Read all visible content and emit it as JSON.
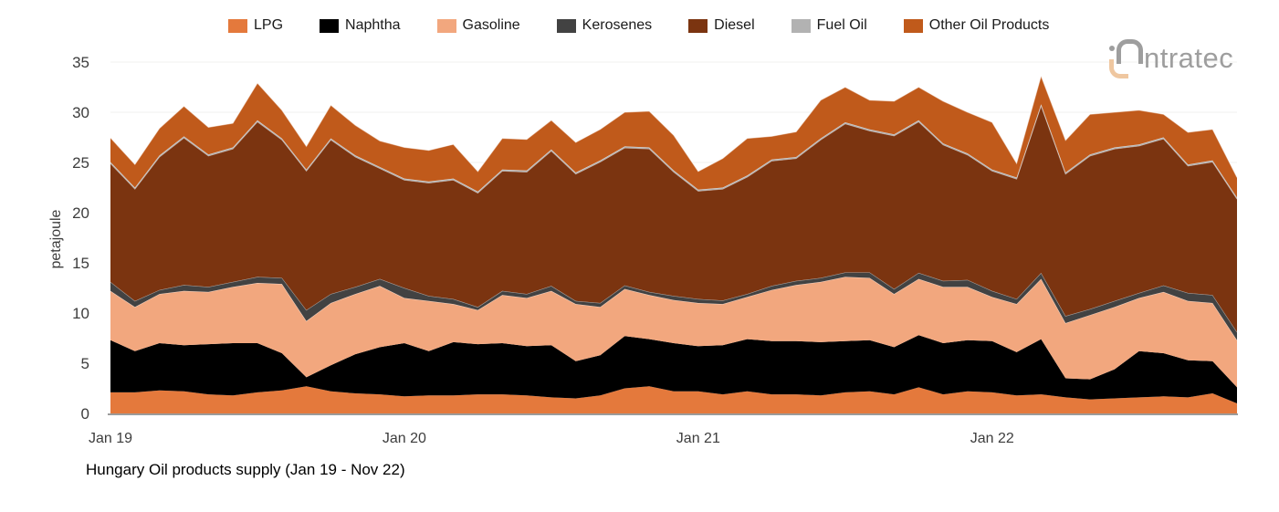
{
  "logo": {
    "text": "ntratec",
    "full_name": "intratec",
    "gray": "#9e9e9e",
    "peach": "#efc7a0"
  },
  "chart_data": {
    "type": "area",
    "stacked": true,
    "title": "Hungary Oil products supply (Jan 19 - Nov 22)",
    "xlabel": "",
    "ylabel": "petajoule",
    "ylim": [
      0,
      35
    ],
    "yticks": [
      0,
      5,
      10,
      15,
      20,
      25,
      30,
      35
    ],
    "grid": true,
    "grid_color": "#f2f1ef",
    "axis_color": "#9b9b9b",
    "tick_label_color": "#3d3d3d",
    "legend_position": "top",
    "xtick_labels": [
      "Jan 19",
      "Jan 20",
      "Jan 21",
      "Jan 22"
    ],
    "xtick_indices": [
      0,
      12,
      24,
      36
    ],
    "categories": [
      "Jan 19",
      "Feb 19",
      "Mar 19",
      "Apr 19",
      "May 19",
      "Jun 19",
      "Jul 19",
      "Aug 19",
      "Sep 19",
      "Oct 19",
      "Nov 19",
      "Dec 19",
      "Jan 20",
      "Feb 20",
      "Mar 20",
      "Apr 20",
      "May 20",
      "Jun 20",
      "Jul 20",
      "Aug 20",
      "Sep 20",
      "Oct 20",
      "Nov 20",
      "Dec 20",
      "Jan 21",
      "Feb 21",
      "Mar 21",
      "Apr 21",
      "May 21",
      "Jun 21",
      "Jul 21",
      "Aug 21",
      "Sep 21",
      "Oct 21",
      "Nov 21",
      "Dec 21",
      "Jan 22",
      "Feb 22",
      "Mar 22",
      "Apr 22",
      "May 22",
      "Jun 22",
      "Jul 22",
      "Aug 22",
      "Sep 22",
      "Oct 22",
      "Nov 22"
    ],
    "series": [
      {
        "name": "LPG",
        "color": "#e4793c",
        "values": [
          2.1,
          2.1,
          2.3,
          2.2,
          1.9,
          1.8,
          2.1,
          2.3,
          2.7,
          2.2,
          2.0,
          1.9,
          1.7,
          1.8,
          1.8,
          1.9,
          1.9,
          1.8,
          1.6,
          1.5,
          1.8,
          2.5,
          2.7,
          2.2,
          2.2,
          1.9,
          2.2,
          1.9,
          1.9,
          1.8,
          2.1,
          2.2,
          1.9,
          2.6,
          1.9,
          2.2,
          2.1,
          1.8,
          1.9,
          1.6,
          1.4,
          1.5,
          1.6,
          1.7,
          1.6,
          2.0,
          1.0
        ]
      },
      {
        "name": "Naphtha",
        "color": "#000000",
        "values": [
          5.2,
          4.1,
          4.7,
          4.6,
          5.0,
          5.2,
          4.9,
          3.7,
          0.9,
          2.6,
          3.9,
          4.7,
          5.3,
          4.4,
          5.3,
          5.0,
          5.1,
          4.9,
          5.2,
          3.7,
          4.0,
          5.2,
          4.7,
          4.8,
          4.5,
          4.9,
          5.2,
          5.3,
          5.3,
          5.3,
          5.1,
          5.1,
          4.7,
          5.2,
          5.1,
          5.1,
          5.1,
          4.3,
          5.5,
          1.9,
          2.0,
          2.9,
          4.6,
          4.3,
          3.7,
          3.2,
          1.6
        ]
      },
      {
        "name": "Gasoline",
        "color": "#f2a77e",
        "values": [
          4.9,
          4.4,
          4.9,
          5.4,
          5.2,
          5.6,
          6.0,
          6.9,
          5.6,
          6.2,
          6.0,
          6.1,
          4.5,
          5.0,
          3.8,
          3.4,
          4.8,
          4.8,
          5.4,
          5.7,
          4.8,
          4.7,
          4.4,
          4.3,
          4.3,
          4.1,
          4.2,
          5.1,
          5.6,
          6.0,
          6.4,
          6.2,
          5.3,
          5.6,
          5.6,
          5.3,
          4.4,
          4.8,
          6.0,
          5.5,
          6.4,
          6.2,
          5.3,
          6.1,
          5.9,
          5.8,
          4.7
        ]
      },
      {
        "name": "Kerosenes",
        "color": "#424242",
        "values": [
          0.9,
          0.6,
          0.4,
          0.6,
          0.5,
          0.5,
          0.6,
          0.6,
          1.1,
          0.9,
          0.7,
          0.7,
          1.0,
          0.5,
          0.5,
          0.3,
          0.4,
          0.4,
          0.5,
          0.3,
          0.4,
          0.35,
          0.3,
          0.4,
          0.4,
          0.35,
          0.3,
          0.4,
          0.4,
          0.4,
          0.45,
          0.55,
          0.5,
          0.6,
          0.6,
          0.7,
          0.6,
          0.5,
          0.6,
          0.7,
          0.6,
          0.6,
          0.5,
          0.65,
          0.8,
          0.8,
          0.8
        ]
      },
      {
        "name": "Diesel",
        "color": "#7b3410",
        "values": [
          11.8,
          11.15,
          13.25,
          14.65,
          13.05,
          13.25,
          15.45,
          13.75,
          13.85,
          15.35,
          12.95,
          11.0,
          10.75,
          11.25,
          11.85,
          11.35,
          11.95,
          12.15,
          13.45,
          12.65,
          14.05,
          13.7,
          14.25,
          12.35,
          10.75,
          11.1,
          11.65,
          12.45,
          12.2,
          13.75,
          14.8,
          14.1,
          15.25,
          15.05,
          13.55,
          12.45,
          11.95,
          11.95,
          16.65,
          14.15,
          15.25,
          15.15,
          14.65,
          14.6,
          12.65,
          13.25,
          13.25
        ]
      },
      {
        "name": "Fuel Oil",
        "color": "#b2b2b2",
        "values": [
          0.15,
          0.15,
          0.15,
          0.15,
          0.15,
          0.15,
          0.15,
          0.15,
          0.15,
          0.15,
          0.15,
          0.15,
          0.15,
          0.15,
          0.15,
          0.15,
          0.15,
          0.15,
          0.15,
          0.15,
          0.15,
          0.15,
          0.15,
          0.15,
          0.15,
          0.15,
          0.15,
          0.15,
          0.15,
          0.15,
          0.15,
          0.15,
          0.15,
          0.15,
          0.15,
          0.15,
          0.15,
          0.15,
          0.15,
          0.15,
          0.15,
          0.15,
          0.15,
          0.15,
          0.15,
          0.15,
          0.15
        ]
      },
      {
        "name": "Other Oil Products",
        "color": "#c05a1b",
        "values": [
          2.4,
          2.3,
          2.7,
          3.0,
          2.7,
          2.4,
          3.7,
          2.8,
          2.3,
          3.3,
          3.0,
          2.6,
          3.1,
          3.1,
          3.4,
          2.0,
          3.1,
          3.1,
          2.9,
          3.0,
          3.1,
          3.4,
          3.6,
          3.5,
          1.8,
          2.9,
          3.7,
          2.3,
          2.5,
          3.8,
          3.5,
          2.9,
          3.3,
          3.3,
          4.2,
          4.1,
          4.7,
          1.4,
          2.8,
          3.2,
          4.0,
          3.5,
          3.4,
          2.3,
          3.2,
          3.1,
          2.0
        ]
      }
    ]
  }
}
